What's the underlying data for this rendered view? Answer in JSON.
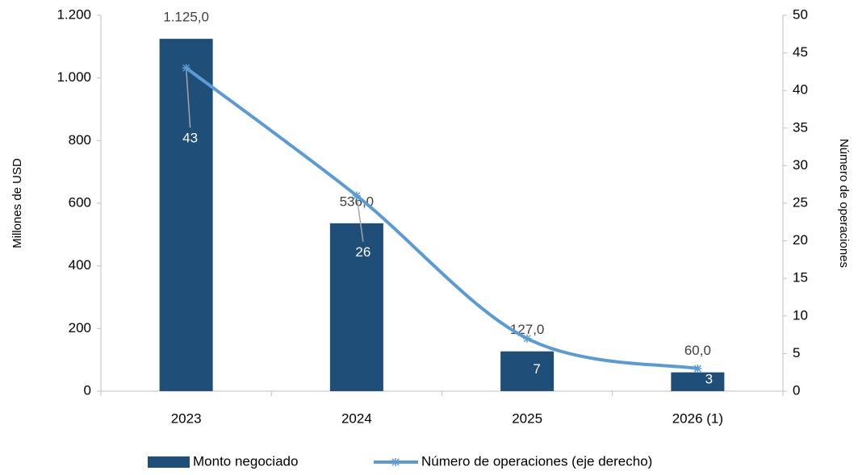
{
  "chart_data": {
    "type": "bar",
    "categories": [
      "2023",
      "2024",
      "2025",
      "2026 (1)"
    ],
    "series": [
      {
        "name": "Monto negociado",
        "type": "bar",
        "color": "#1f4e79",
        "values": [
          1125,
          536,
          127,
          60
        ],
        "value_labels": [
          "1.125,0",
          "536,0",
          "127,0",
          "60,0"
        ]
      },
      {
        "name": "Número de operaciones (eje derecho)",
        "type": "line",
        "axis": "y2",
        "color": "#5b9bd5",
        "values": [
          43,
          26,
          7,
          3
        ]
      }
    ],
    "ylabel": "Millones de USD",
    "y2label": "Número de operaciones",
    "ylim": [
      0,
      1200
    ],
    "yticks": [
      0,
      200,
      400,
      600,
      800,
      {
        "value": 1000,
        "label": "1.000"
      },
      {
        "value": 1200,
        "label": "1.200"
      }
    ],
    "y2lim": [
      0,
      50
    ],
    "y2ticks": [
      0,
      5,
      10,
      15,
      20,
      25,
      30,
      35,
      40,
      45,
      50
    ],
    "grid": false,
    "legend": "bottom"
  }
}
